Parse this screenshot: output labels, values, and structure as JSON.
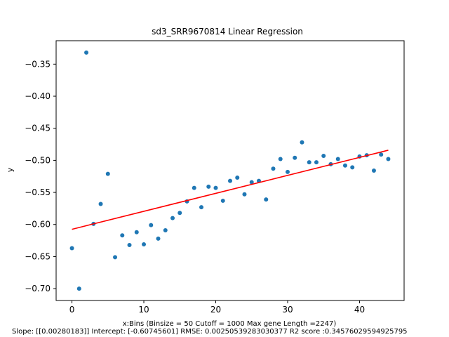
{
  "chart_data": {
    "type": "scatter",
    "title": "sd3_SRR9670814 Linear Regression",
    "xlabel_line1": "x:Bins  (Binsize = 50 Cutoff = 1000 Max gene Length =2247)",
    "xlabel_line2": "Slope: [[0.00280183]] Intercept: [-0.60745601] RMSE: 0.00250539283030377 R2 score :0.34576029594925795",
    "ylabel": "y",
    "xlim": [
      -2.2,
      46.2
    ],
    "ylim": [
      -0.7185,
      -0.3135
    ],
    "xticks": [
      0,
      10,
      20,
      30,
      40
    ],
    "yticks": [
      -0.35,
      -0.4,
      -0.45,
      -0.5,
      -0.55,
      -0.6,
      -0.65,
      -0.7
    ],
    "xtick_labels": [
      "0",
      "10",
      "20",
      "30",
      "40"
    ],
    "ytick_labels": [
      "−0.35",
      "−0.40",
      "−0.45",
      "−0.50",
      "−0.55",
      "−0.60",
      "−0.65",
      "−0.70"
    ],
    "series": [
      {
        "type": "scatter",
        "color": "#1f77b4",
        "x": [
          0,
          1,
          2,
          3,
          4,
          5,
          6,
          7,
          8,
          9,
          10,
          11,
          12,
          13,
          14,
          15,
          16,
          17,
          18,
          19,
          20,
          21,
          22,
          23,
          24,
          25,
          26,
          27,
          28,
          29,
          30,
          31,
          32,
          33,
          34,
          35,
          36,
          37,
          38,
          39,
          40,
          41,
          42,
          43,
          44
        ],
        "y": [
          -0.637,
          -0.7,
          -0.332,
          -0.599,
          -0.568,
          -0.521,
          -0.651,
          -0.617,
          -0.632,
          -0.612,
          -0.631,
          -0.601,
          -0.622,
          -0.609,
          -0.59,
          -0.582,
          -0.564,
          -0.543,
          -0.573,
          -0.541,
          -0.543,
          -0.563,
          -0.532,
          -0.527,
          -0.553,
          -0.534,
          -0.532,
          -0.561,
          -0.513,
          -0.498,
          -0.518,
          -0.496,
          -0.472,
          -0.503,
          -0.503,
          -0.493,
          -0.506,
          -0.498,
          -0.508,
          -0.511,
          -0.494,
          -0.492,
          -0.516,
          -0.491,
          -0.498
        ]
      },
      {
        "type": "line",
        "color": "#ff0000",
        "x": [
          0,
          44
        ],
        "y": [
          -0.6075,
          -0.4842
        ]
      }
    ]
  }
}
